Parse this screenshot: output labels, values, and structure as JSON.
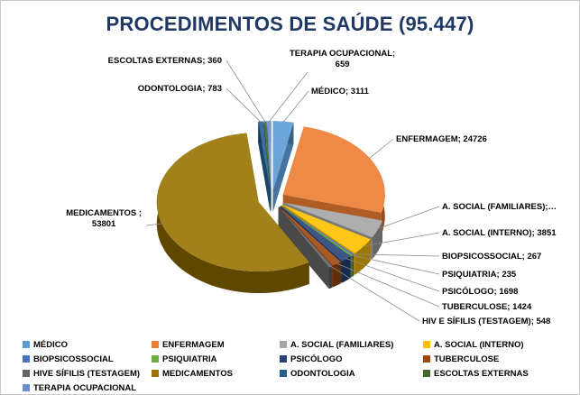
{
  "style": {
    "background": "#FFFFFF",
    "border_color": "#C9C9C9",
    "title_color": "#1F3864",
    "label_color": "#000000",
    "leader_line_color": "#8C8C8C"
  },
  "chart_data": {
    "type": "pie",
    "style_3d": "exploded-3d",
    "title": "PROCEDIMENTOS DE SAÚDE (95.447)",
    "total": 95447,
    "legend_position": "bottom",
    "slices": [
      {
        "label": "MÉDICO",
        "value": 3111,
        "color": "#5B9BD5",
        "callout": "MÉDICO; 3111"
      },
      {
        "label": "ENFERMAGEM",
        "value": 24726,
        "color": "#ED7D31",
        "callout": "ENFERMAGEM; 24726"
      },
      {
        "label": "A. SOCIAL (FAMILIARES)",
        "value": 3984,
        "color": "#A5A5A5",
        "callout": "A. SOCIAL (FAMILIARES);…"
      },
      {
        "label": "A. SOCIAL (INTERNO)",
        "value": 3851,
        "color": "#FFC000",
        "callout": "A. SOCIAL (INTERNO); 3851"
      },
      {
        "label": "BIOPSICOSSOCIAL",
        "value": 267,
        "color": "#4472C4",
        "callout": "BIOPSICOSSOCIAL; 267"
      },
      {
        "label": "PSIQUIATRIA",
        "value": 235,
        "color": "#70AD47",
        "callout": "PSIQUIATRIA; 235"
      },
      {
        "label": "PSICÓLOGO",
        "value": 1698,
        "color": "#264478",
        "callout": "PSICÓLOGO; 1698"
      },
      {
        "label": "TUBERCULOSE",
        "value": 1424,
        "color": "#9E480E",
        "callout": "TUBERCULOSE; 1424"
      },
      {
        "label": "HIVE SÍFILIS (TESTAGEM)",
        "value": 548,
        "color": "#636363",
        "callout": "HIV E SÍFILIS (TESTAGEM); 548"
      },
      {
        "label": "MEDICAMENTOS",
        "value": 53801,
        "color": "#997300",
        "callout": "MEDICAMENTOS ;\n53801"
      },
      {
        "label": "ODONTOLOGIA",
        "value": 783,
        "color": "#255E91",
        "callout": "ODONTOLOGIA; 783"
      },
      {
        "label": "ESCOLTAS EXTERNAS",
        "value": 360,
        "color": "#43682B",
        "callout": "ESCOLTAS EXTERNAS; 360"
      },
      {
        "label": "TERAPIA OCUPACIONAL",
        "value": 659,
        "color": "#698ED0",
        "callout": "TERAPIA OCUPACIONAL;\n659"
      }
    ]
  }
}
